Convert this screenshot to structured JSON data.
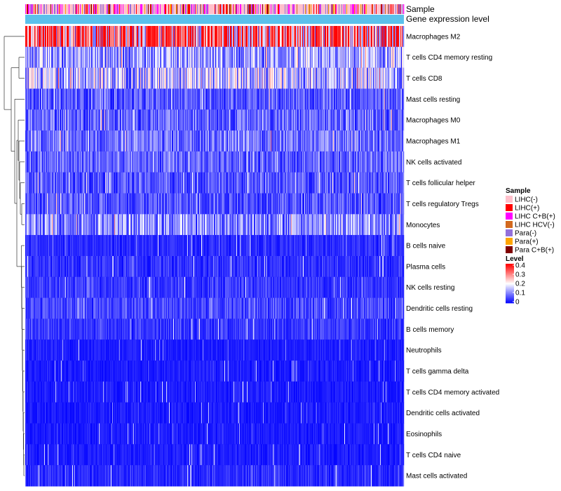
{
  "chart_data": {
    "type": "heatmap",
    "title": "",
    "column_annotations": [
      {
        "name": "Sample"
      },
      {
        "name": "Gene expression level"
      }
    ],
    "rows": [
      "Macrophages M2",
      "T cells CD4 memory resting",
      "T cells CD8",
      "Mast cells resting",
      "Macrophages M0",
      "Macrophages M1",
      "NK cells activated",
      "T cells follicular helper",
      "T cells regulatory  Tregs",
      "Monocytes",
      "B cells naive",
      "Plasma cells",
      "NK cells resting",
      "Dendritic cells resting",
      "B cells memory",
      "Neutrophils",
      "T cells gamma delta",
      "T cells CD4 memory activated",
      "Dendritic cells activated",
      "Eosinophils",
      "T cells CD4 naive",
      "Mast cells activated"
    ],
    "row_mean_levels": [
      0.3,
      0.11,
      0.13,
      0.06,
      0.07,
      0.08,
      0.07,
      0.06,
      0.06,
      0.1,
      0.03,
      0.035,
      0.04,
      0.05,
      0.04,
      0.02,
      0.02,
      0.02,
      0.02,
      0.02,
      0.02,
      0.03
    ],
    "n_samples": 540,
    "sample_legend": {
      "title": "Sample",
      "entries": [
        {
          "label": "LIHC(-)",
          "color": "#ffc0cb"
        },
        {
          "label": "LIHC(+)",
          "color": "#ff0000"
        },
        {
          "label": "LIHC C+B(+)",
          "color": "#ff00ff"
        },
        {
          "label": "LIHC HCV(-)",
          "color": "#d2691e"
        },
        {
          "label": "Para(-)",
          "color": "#9370db"
        },
        {
          "label": "Para(+)",
          "color": "#ffa500"
        },
        {
          "label": "Para C+B(+)",
          "color": "#800000"
        }
      ]
    },
    "sample_mix": [
      0.55,
      0.1,
      0.12,
      0.03,
      0.12,
      0.05,
      0.03
    ],
    "gene_expression_color": "#5bc0eb",
    "level_legend": {
      "title": "Level",
      "ticks": [
        "0.4",
        "0.3",
        "0.2",
        "0.1",
        "0"
      ],
      "range": [
        0,
        0.4
      ],
      "colors": [
        "#0000ff",
        "#ffffff",
        "#ff0000"
      ]
    }
  }
}
